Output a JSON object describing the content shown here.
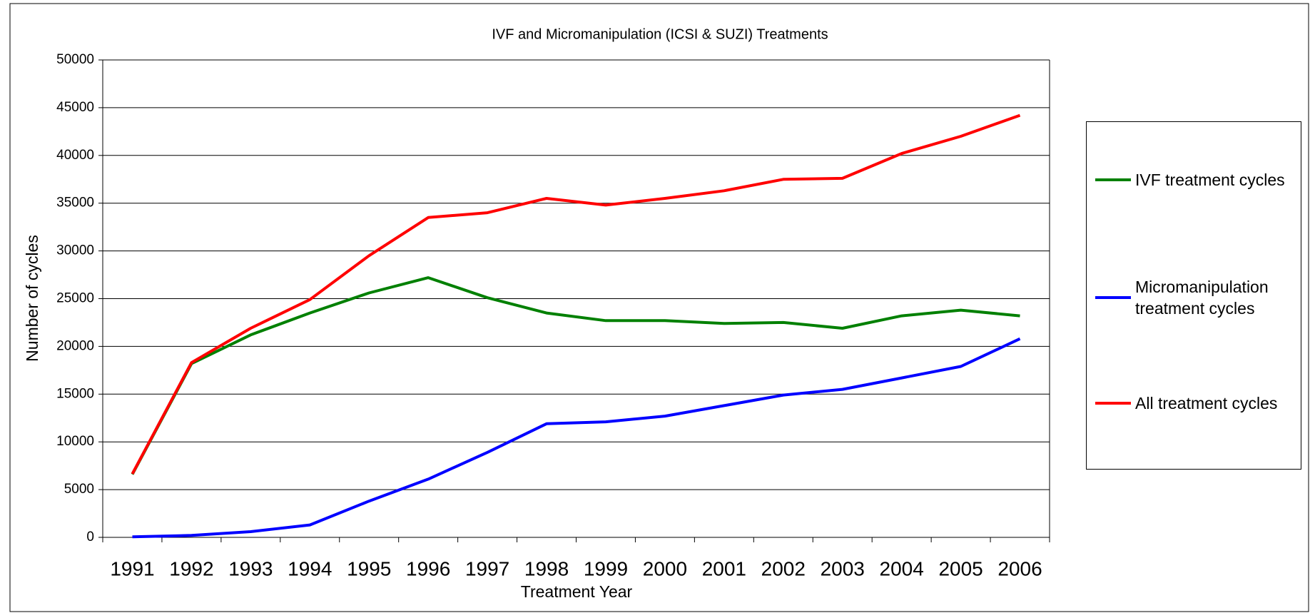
{
  "chart_data": {
    "type": "line",
    "title": "IVF and Micromanipulation (ICSI & SUZI) Treatments",
    "x_label": "Treatment Year",
    "y_label": "Number of cycles",
    "categories": [
      "1991",
      "1992",
      "1993",
      "1994",
      "1995",
      "1996",
      "1997",
      "1998",
      "1999",
      "2000",
      "2001",
      "2002",
      "2003",
      "2004",
      "2005",
      "2006"
    ],
    "series": [
      {
        "name": "IVF treatment cycles",
        "color": "#008000",
        "values": [
          6600,
          18200,
          21200,
          23500,
          25600,
          27200,
          25100,
          23500,
          22700,
          22700,
          22400,
          22500,
          21900,
          23200,
          23800,
          23200
        ]
      },
      {
        "name": "Micromanipulation treatment cycles",
        "color": "#0000ff",
        "values": [
          50,
          200,
          600,
          1300,
          3800,
          6100,
          8900,
          11900,
          12100,
          12700,
          13800,
          14900,
          15500,
          16700,
          17900,
          20800
        ]
      },
      {
        "name": "All treatment cycles",
        "color": "#ff0000",
        "values": [
          6650,
          18300,
          21900,
          24900,
          29500,
          33500,
          34000,
          35500,
          34800,
          35500,
          36300,
          37500,
          37600,
          40200,
          42000,
          44200
        ]
      }
    ],
    "ylim": [
      0,
      50000
    ],
    "yticks": [
      0,
      5000,
      10000,
      15000,
      20000,
      25000,
      30000,
      35000,
      40000,
      45000,
      50000
    ],
    "grid": true,
    "legend": "right"
  }
}
